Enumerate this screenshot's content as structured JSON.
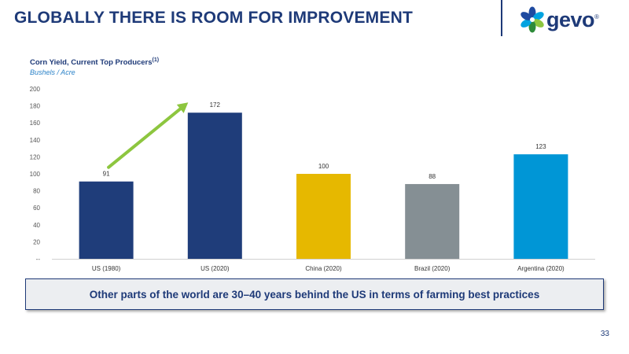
{
  "header": {
    "title": "GLOBALLY THERE IS ROOM FOR IMPROVEMENT",
    "logo_text": "gevo",
    "logo_mark": "®"
  },
  "chart_data": {
    "type": "bar",
    "title": "Corn Yield, Current Top Producers",
    "title_footnote": "(1)",
    "subtitle": "Bushels / Acre",
    "categories": [
      "US (1980)",
      "US (2020)",
      "China (2020)",
      "Brazil (2020)",
      "Argentina (2020)"
    ],
    "values": [
      91,
      172,
      100,
      88,
      123
    ],
    "colors": [
      "#1f3d7a",
      "#1f3d7a",
      "#e6b800",
      "#858f94",
      "#0096d6"
    ],
    "ylim": [
      0,
      200
    ],
    "yticks": [
      0,
      20,
      40,
      60,
      80,
      100,
      120,
      140,
      160,
      180,
      200
    ],
    "ytick_labels": [
      "--",
      "20",
      "40",
      "60",
      "80",
      "100",
      "120",
      "140",
      "160",
      "180",
      "200"
    ],
    "grid": false,
    "annotation": {
      "type": "arrow",
      "from": "US (1980)",
      "to": "US (2020)",
      "color": "#8dc63f"
    }
  },
  "callout": {
    "text": "Other parts of the world are 30–40 years behind the US in terms of farming best practices"
  },
  "footer": {
    "page_number": "33"
  }
}
